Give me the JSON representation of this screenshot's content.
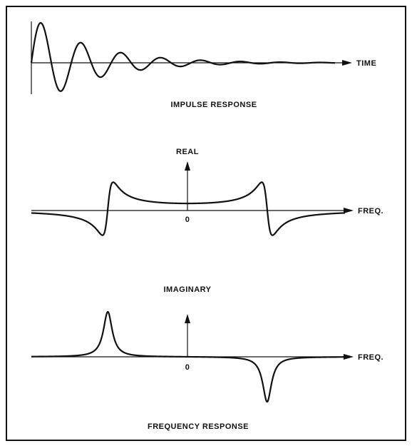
{
  "impulse": {
    "axis_label": "TIME",
    "caption": "IMPULSE RESPONSE"
  },
  "real": {
    "axis_label": "REAL",
    "origin_label": "0",
    "freq_label": "FREQ."
  },
  "imaginary": {
    "axis_label": "IMAGINARY",
    "origin_label": "0",
    "freq_label": "FREQ."
  },
  "caption": "FREQUENCY RESPONSE"
}
